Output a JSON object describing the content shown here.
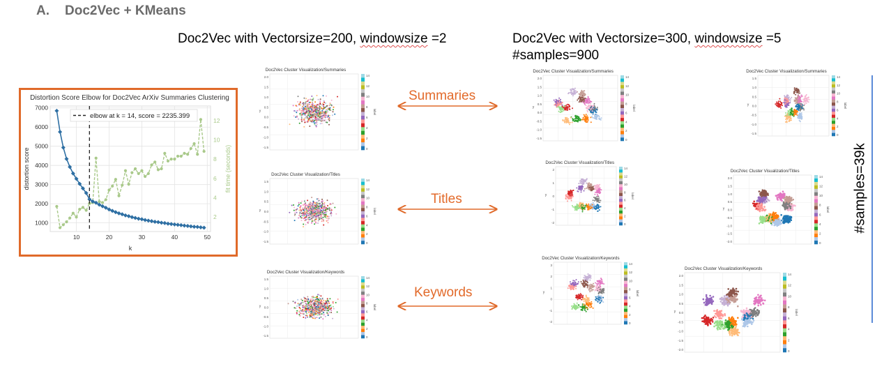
{
  "section": {
    "letter": "A.",
    "title": "Doc2Vec + KMeans"
  },
  "col1_header": {
    "prefix": "Doc2Vec with Vectorsize=200, ",
    "squiggle": "windowsize",
    "suffix": " =2"
  },
  "col2_header": {
    "prefix": "Doc2Vec with Vectorsize=300, ",
    "squiggle": "windowsize",
    "suffix": " =5",
    "line2": "#samples=900"
  },
  "right_label": "#samples=39k",
  "arrows": [
    {
      "label": "Summaries"
    },
    {
      "label": "Titles"
    },
    {
      "label": "Keywords"
    }
  ],
  "colors": {
    "accent_orange": "#e06a2a",
    "line_blue": "#2e6fa3",
    "line_green": "#a9c98a",
    "divider": "#5b8ad8"
  },
  "chart_data": {
    "type": "line",
    "title": "Distortion Score Elbow for Doc2Vec ArXiv Summaries Clustering",
    "xlabel": "k",
    "ylabel": "distortion score",
    "y2label": "fit time (seconds)",
    "annotation": "elbow at k = 14, score = 2235.399",
    "xlim": [
      2,
      51
    ],
    "ylim": [
      550,
      7100
    ],
    "y2lim": [
      0.5,
      13.5
    ],
    "xticks": [
      "10",
      "20",
      "30",
      "40",
      "50"
    ],
    "yticks": [
      "1000",
      "2000",
      "3000",
      "4000",
      "5000",
      "6000",
      "7000"
    ],
    "y2ticks": [
      "2",
      "4",
      "6",
      "8",
      "10",
      "12"
    ],
    "elbow_k": 14,
    "series": [
      {
        "name": "distortion score",
        "x": [
          4,
          5,
          6,
          7,
          8,
          9,
          10,
          11,
          12,
          13,
          14,
          15,
          16,
          17,
          18,
          19,
          20,
          21,
          22,
          23,
          24,
          25,
          26,
          27,
          28,
          29,
          30,
          31,
          32,
          33,
          34,
          35,
          36,
          37,
          38,
          39,
          40,
          41,
          42,
          43,
          44,
          45,
          46,
          47,
          48,
          49
        ],
        "values": [
          6850,
          5750,
          4930,
          4340,
          3920,
          3580,
          3300,
          3040,
          2800,
          2560,
          2235,
          2120,
          2050,
          1950,
          1870,
          1790,
          1700,
          1630,
          1560,
          1500,
          1450,
          1390,
          1350,
          1300,
          1260,
          1220,
          1190,
          1150,
          1120,
          1090,
          1060,
          1040,
          1010,
          990,
          960,
          940,
          920,
          900,
          880,
          860,
          840,
          820,
          800,
          790,
          770,
          750
        ]
      },
      {
        "name": "fit time (seconds)",
        "x": [
          4,
          5,
          6,
          7,
          8,
          9,
          10,
          11,
          12,
          13,
          14,
          15,
          16,
          17,
          18,
          19,
          20,
          21,
          22,
          23,
          24,
          25,
          26,
          27,
          28,
          29,
          30,
          31,
          32,
          33,
          34,
          35,
          36,
          37,
          38,
          39,
          40,
          41,
          42,
          43,
          44,
          45,
          46,
          47,
          48,
          49
        ],
        "values": [
          3.1,
          0.9,
          1.2,
          1.5,
          1.9,
          2.4,
          2.0,
          2.8,
          3.0,
          2.7,
          3.4,
          3.5,
          8.1,
          3.6,
          3.5,
          3.8,
          4.8,
          5.2,
          5.9,
          4.2,
          5.3,
          6.8,
          5.4,
          6.6,
          7.0,
          6.5,
          6.8,
          6.2,
          6.5,
          7.4,
          7.7,
          6.9,
          7.0,
          8.6,
          7.8,
          8.0,
          8.0,
          8.3,
          8.3,
          8.6,
          8.5,
          9.1,
          9.6,
          8.5,
          12.1,
          8.8
        ]
      }
    ]
  },
  "thumbnails": [
    {
      "title": "Doc2Vec Cluster Visualization/Summaries",
      "yticks": [
        "2.0",
        "1.5",
        "1.0",
        "0.5",
        "0.0",
        "-0.5",
        "-1.0",
        "-1.5"
      ],
      "cbar_ticks": [
        "14",
        "12",
        "10",
        "8",
        "6",
        "4",
        "2",
        "0"
      ],
      "cbar_label": "label",
      "ylabel": "y"
    },
    {
      "title": "Doc2Vec Cluster Visualization/Titles",
      "yticks": [
        "1.5",
        "1.0",
        "0.5",
        "0.0",
        "-0.5",
        "-1.0",
        "-1.5"
      ],
      "cbar_ticks": [
        "14",
        "12",
        "10",
        "8",
        "6",
        "4",
        "2",
        "0"
      ],
      "cbar_label": "label",
      "ylabel": "y"
    },
    {
      "title": "Doc2Vec Cluster Visualization/Keywords",
      "yticks": [
        "1.5",
        "1.0",
        "0.5",
        "0.0",
        "-0.5",
        "-1.0",
        "-1.5"
      ],
      "cbar_ticks": [
        "14",
        "12",
        "10",
        "8",
        "6",
        "4",
        "2",
        "0"
      ],
      "cbar_label": "label",
      "ylabel": "y"
    },
    {
      "title": "Doc2Vec Cluster Visualization/Summaries",
      "yticks": [
        "2.0",
        "1.5",
        "1.0",
        "0.5",
        "0.0",
        "-0.5",
        "-1.0",
        "-1.5"
      ],
      "cbar_ticks": [
        "14",
        "12",
        "10",
        "8",
        "6",
        "4",
        "2",
        "0"
      ],
      "cbar_label": "label",
      "ylabel": "y"
    },
    {
      "title": "Doc2Vec Cluster Visualization/Summaries",
      "yticks": [
        "1.5",
        "1.0",
        "0.5",
        "0.0",
        "-0.5",
        "-1.0",
        "-1.5"
      ],
      "cbar_ticks": [
        "14",
        "12",
        "10",
        "8",
        "6",
        "4",
        "2",
        "0"
      ],
      "cbar_label": "label",
      "ylabel": "y"
    },
    {
      "title": "Doc2Vec Cluster Visualization/Titles",
      "yticks": [
        "2",
        "1",
        "0",
        "-1",
        "-2"
      ],
      "cbar_ticks": [
        "14",
        "12",
        "10",
        "8",
        "6",
        "4",
        "2",
        "0"
      ],
      "cbar_label": "label",
      "ylabel": "y"
    },
    {
      "title": "Doc2Vec Cluster Visualization/Titles",
      "yticks": [
        "2.0",
        "1.5",
        "1.0",
        "0.5",
        "0.0",
        "-0.5",
        "-1.0",
        "-1.5",
        "-2.0"
      ],
      "cbar_ticks": [
        "14",
        "12",
        "10",
        "8",
        "6",
        "4",
        "2",
        "0"
      ],
      "cbar_label": "label",
      "ylabel": "y"
    },
    {
      "title": "Doc2Vec Cluster Visualization/Keywords",
      "yticks": [
        "3",
        "2",
        "1",
        "0",
        "-1",
        "-2"
      ],
      "cbar_ticks": [
        "14",
        "12",
        "10",
        "8",
        "6",
        "4",
        "2",
        "0"
      ],
      "cbar_label": "label",
      "ylabel": "y"
    },
    {
      "title": "Doc2Vec Cluster Visualization/Keywords",
      "yticks": [
        "2.0",
        "1.5",
        "1.0",
        "0.5",
        "0.0",
        "-0.5",
        "-1.0",
        "-1.5",
        "-2.0"
      ],
      "cbar_ticks": [
        "14",
        "12",
        "10",
        "8",
        "6",
        "4",
        "2",
        "0"
      ],
      "cbar_label": "label",
      "ylabel": "y"
    }
  ],
  "palette": [
    "#1f77b4",
    "#aec7e8",
    "#ff7f0e",
    "#ffbb78",
    "#2ca02c",
    "#98df8a",
    "#d62728",
    "#ff9896",
    "#9467bd",
    "#c5b0d5",
    "#8c564b",
    "#c49c94",
    "#e377c2",
    "#f7b6d2",
    "#7f7f7f",
    "#c7c7c7",
    "#bcbd22",
    "#dbdb8d",
    "#17becf",
    "#9edae5"
  ]
}
